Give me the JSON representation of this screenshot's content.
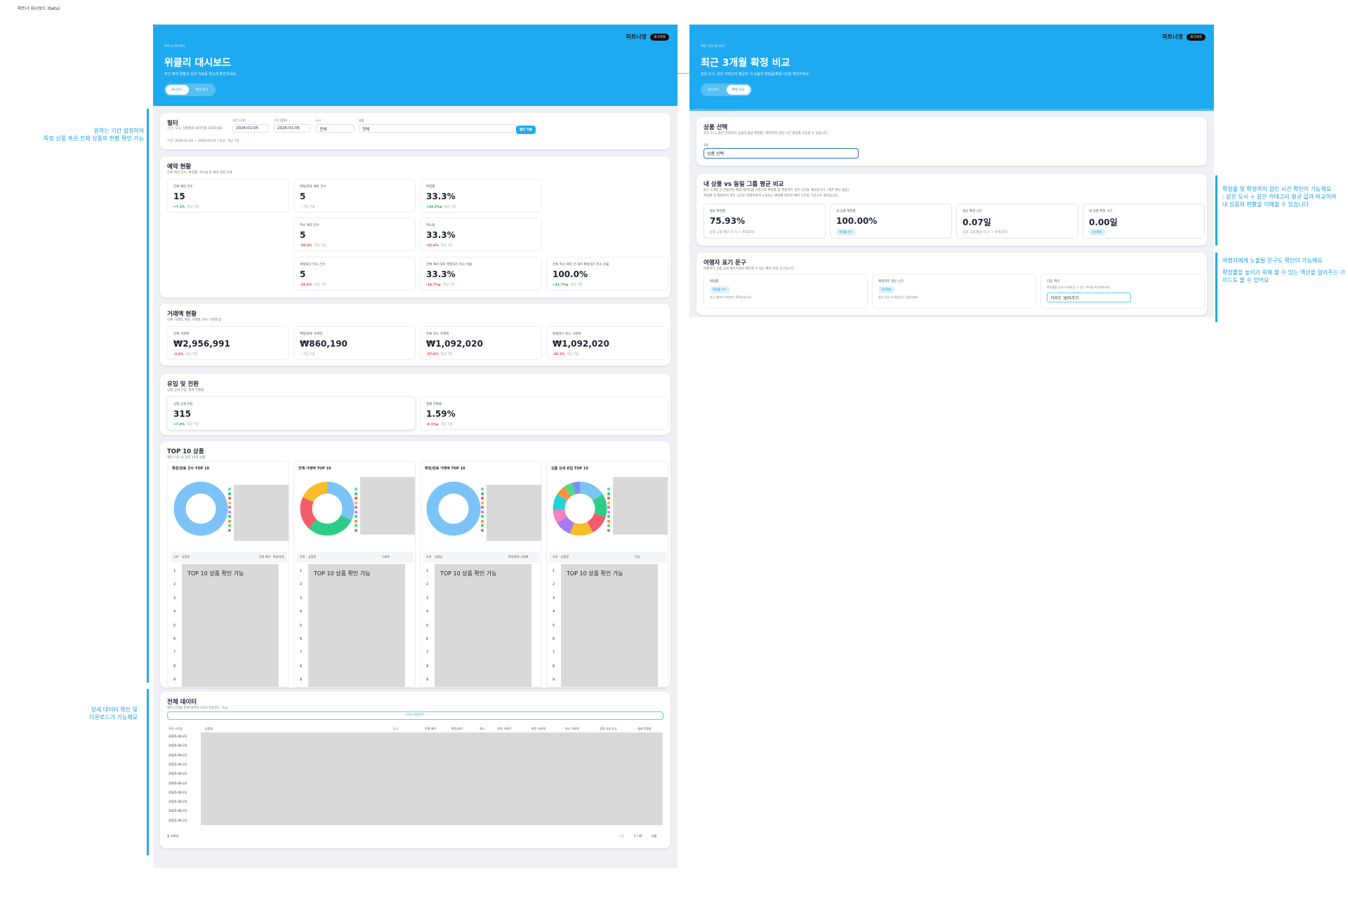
{
  "page_title": "파트너 대시보드 (beta)",
  "annotations": [
    {
      "lines": [
        "원하는 기간 설정하여",
        "특정 상품 혹은 전체 상품의 현황 확인 가능"
      ]
    },
    {
      "lines": [
        "상세 데이터 확인 및",
        "다운로드가 가능해요"
      ]
    },
    {
      "lines": [
        "확정율 및 확정까지 걸린 시간 확인이 가능해요",
        ": 같은 도시 + 같은 카테고리 평균 값과 비교하여",
        "내 상품의 현황을 이해할 수 있습니다"
      ]
    },
    {
      "lines": [
        "여행자에게 노출될 문구도 확인이 가능해요",
        "확정률을 높이기 위해 할 수 있는 액션을 알려주는 가",
        "이드도 볼 수 있어요"
      ]
    }
  ],
  "weekly": {
    "header": {
      "eyebrow": "파트너 대시보드",
      "title": "위클리 대시보드",
      "subtitle": "주간 예약 현황과 성과 지표를 한눈에 확인하세요.",
      "brand": "파트너명",
      "logout": "로그아웃",
      "tabs": [
        "대시보드",
        "확정 비교"
      ]
    },
    "filter": {
      "title": "필터",
      "desc": "기간, 도시, 상품별로 데이터를 조회하세요",
      "fields": [
        {
          "label": "기간 (시작)",
          "value": "2026-01-05"
        },
        {
          "label": "기간 (종료)",
          "value": "2026-01-05"
        },
        {
          "label": "도시",
          "value": "전체"
        },
        {
          "label": "상품",
          "value": "전체"
        }
      ],
      "button": "필터 적용",
      "period": "기간: 2026-01-05 ~ 2026-01-05 | 비교: 지난 7일"
    },
    "booking": {
      "title": "예약 현황",
      "desc": "전체 예약 건수, 확정률, 취소율 등 예약 관련 지표",
      "cards": [
        {
          "label": "전체 예약 건수",
          "value": "15",
          "delta": "+7.1%",
          "compare": "지난 7일",
          "trend": "up"
        },
        {
          "label": "확정/완료 예약 건수",
          "value": "5",
          "delta": "-",
          "compare": "지난 7일",
          "trend": "flat"
        },
        {
          "label": "확정률",
          "value": "33.3%",
          "delta": "+33.3%p",
          "compare": "지난 7일",
          "trend": "up"
        },
        {
          "label": "취소 예약 건수",
          "value": "5",
          "delta": "-58.3%",
          "compare": "지난 7일",
          "trend": "down"
        },
        {
          "label": "취소율",
          "value": "33.3%",
          "delta": "-52.6%",
          "compare": "지난 7일",
          "trend": "down"
        },
        {
          "label": "확정대기 취소 건수",
          "value": "5",
          "delta": "-28.6%",
          "compare": "지난 7일",
          "trend": "down"
        },
        {
          "label": "전체 예약 대비 확정대기 취소 비율",
          "value": "33.3%",
          "delta": "-16.7%p",
          "compare": "지난 7일",
          "trend": "down"
        },
        {
          "label": "전체 취소 예약 건 대비 확정대기 취소 비율",
          "value": "100.0%",
          "delta": "+41.7%p",
          "compare": "지난 7일",
          "trend": "up"
        }
      ]
    },
    "revenue": {
      "title": "거래액 현황",
      "desc": "전체 거래액, 확정 거래액, 취소 거래액 등",
      "cards": [
        {
          "label": "전체 거래액",
          "value": "₩2,956,991",
          "delta": "-3.6%",
          "compare": "지난 7일",
          "trend": "down"
        },
        {
          "label": "확정/완료 거래액",
          "value": "₩860,190",
          "delta": "-",
          "compare": "지난 7일",
          "trend": "flat"
        },
        {
          "label": "전체 취소 거래액",
          "value": "₩1,092,020",
          "delta": "-57.6%",
          "compare": "지난 7일",
          "trend": "down"
        },
        {
          "label": "확정대기 취소 거래액",
          "value": "₩1,092,020",
          "delta": "-20.2%",
          "compare": "지난 7일",
          "trend": "down"
        }
      ]
    },
    "traffic": {
      "title": "유입 및 전환",
      "desc": "상품 상세 유입, 결제 전환율",
      "cards": [
        {
          "label": "상품 상세 유입",
          "value": "315",
          "delta": "+7.8%",
          "compare": "지난 7일",
          "trend": "up"
        },
        {
          "label": "결제 전환율",
          "value": "1.59%",
          "delta": "-0.1%p",
          "compare": "지난 7일",
          "trend": "down"
        }
      ]
    },
    "top10": {
      "title": "TOP 10 상품",
      "desc": "필터 기간 내 상위 10개 상품",
      "overlay": "TOP 10 상품 확인 가능",
      "ranks": [
        1,
        2,
        3,
        4,
        5,
        6,
        7,
        8,
        9
      ],
      "charts": [
        {
          "title": "확정/완료 건수 TOP 10",
          "columns": [
            "순위",
            "상품명",
            "전체 예약",
            "확정/완료"
          ]
        },
        {
          "title": "전체 거래액 TOP 10",
          "columns": [
            "순위",
            "상품명",
            "거래액"
          ]
        },
        {
          "title": "확정/완료 거래액 TOP 10",
          "columns": [
            "순위",
            "상품명",
            "확정/완료 거래액"
          ]
        },
        {
          "title": "상품 상세 유입 TOP 10",
          "columns": [
            "순위",
            "상품명",
            "유입"
          ]
        }
      ]
    },
    "data": {
      "title": "전체 데이터",
      "desc": "필터 미적용 전체 데이터 (CSV 다운로드 가능)",
      "download": "CSV 다운로드",
      "columns": [
        "주차 시작일",
        "상품명",
        "도시",
        "전체 예약",
        "확정/완료",
        "취소",
        "전체 거래액",
        "확정 거래액",
        "취소 거래액",
        "상품 상세 유입",
        "결제 전환율"
      ],
      "rows": [
        "2025-06-23",
        "2025-06-23",
        "2025-06-23",
        "2025-06-23",
        "2025-06-23",
        "2025-06-23",
        "2025-06-23",
        "2025-06-23",
        "2025-06-23",
        "2025-06-23"
      ],
      "total": "총 349개",
      "prev": "이전",
      "page": "1 / 35",
      "next": "다음"
    }
  },
  "compare": {
    "header": {
      "eyebrow": "확정 비교 대시보드",
      "title": "최근 3개월 확정 비교",
      "subtitle": "같은 도시, 같은 카테고리 평균과 내 상품의 확정률/확정시간을 확인하세요.",
      "brand": "파트너명",
      "logout": "로그아웃",
      "tabs": [
        "대시보드",
        "확정 비교"
      ]
    },
    "select": {
      "title": "상품 선택",
      "desc": "같은 도시, 같은 카테고리 상품의 평균 확정률 / 확정까지 걸린 시간 정보를 비교할 수 있습니다.",
      "label": "상품",
      "value": "상품 선택"
    },
    "group": {
      "title": "내 상품 vs 동일 그룹 평균 비교",
      "desc": [
        "최근 3개월 간 만들어진 예약 데이터를 기준으로 확정률 및 확정까지 걸린 시간을 계산합니다. (재주 필요 없음)",
        "확정률 및 확정까지 걸린 시간은 여행자에게 노출되는 예약률 대비한 예약 건수를 기준으로 계산됩니다."
      ],
      "cards": [
        {
          "label": "평균 확정률",
          "value": "75.93%",
          "sub": "동일 그룹 평균 (도시 + 카테고리)"
        },
        {
          "label": "내 상품 확정률",
          "value": "100.00%",
          "badge": "확정률 우수"
        },
        {
          "label": "평균 확정 시간",
          "value": "0.07일",
          "sub": "동일 그룹 평균 (도시 + 카테고리)"
        },
        {
          "label": "내 상품 확정 시간",
          "value": "0.00일",
          "badge": "당일확정"
        }
      ]
    },
    "traveler": {
      "title": "여행자 표기 문구",
      "desc": "여행자가 상품 상세 페이지에서 확인할 수 있는 확정 관련 문구입니다.",
      "items": [
        {
          "label": "확정률",
          "badge": "확정률 우수",
          "text": "최근 예약의 대부분이 확정되었어요."
        },
        {
          "label": "확정까지 걸린 시간",
          "badge": "당일확정",
          "text": "평균 당일 내 확정되는 상품이에요."
        },
        {
          "label": "다음 액션",
          "text": "확정률을 높이기 위해 할 수 있는 액션을 확인해보세요.",
          "button": "가이드 보러가기"
        }
      ]
    }
  }
}
